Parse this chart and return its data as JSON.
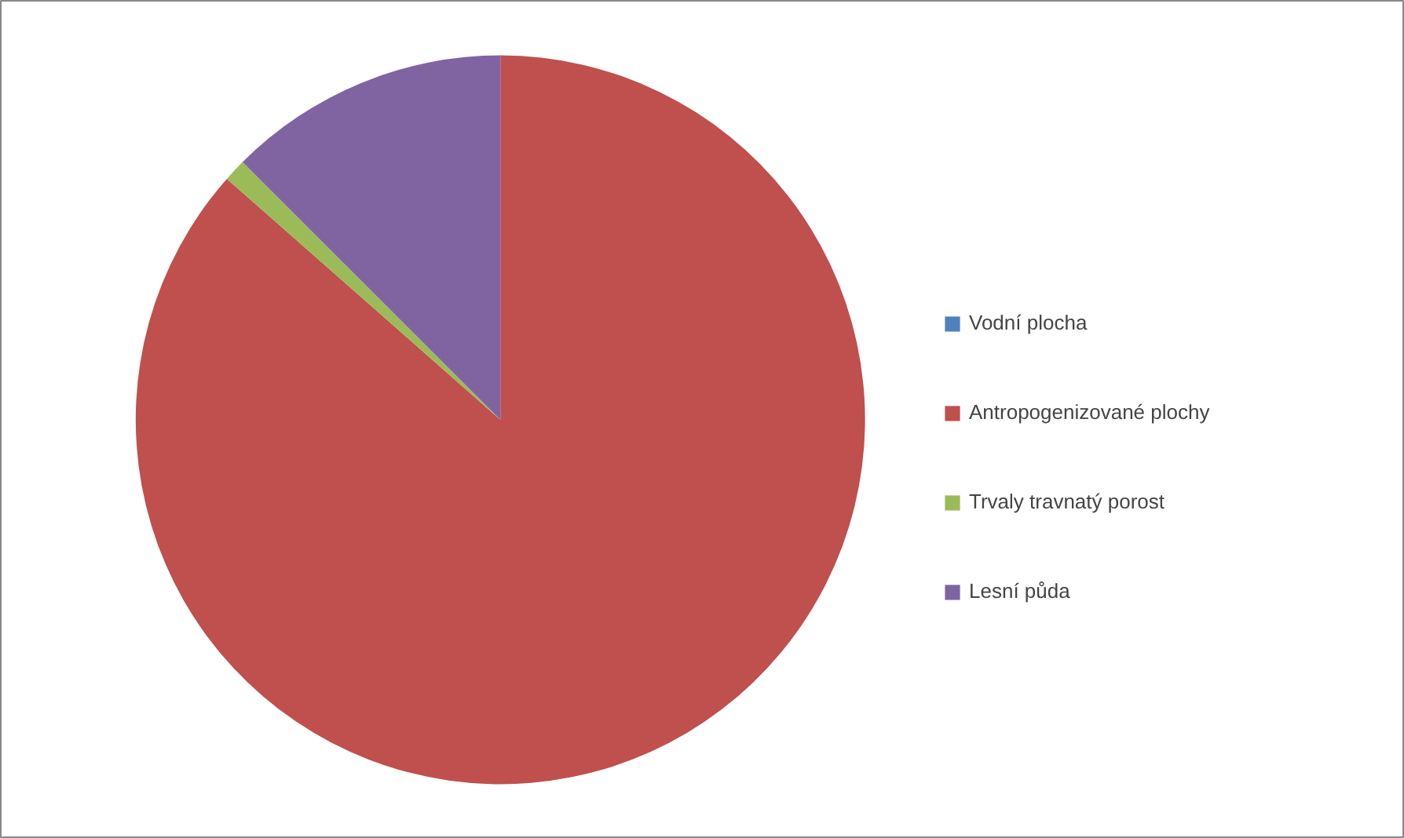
{
  "chart_data": {
    "type": "pie",
    "categories": [
      "Vodní plocha",
      "Antropogenizované plochy",
      "Trvaly travnatý porost",
      "Lesní půda"
    ],
    "values": [
      0,
      86.5,
      1,
      12.5
    ],
    "colors": [
      "#4f81bd",
      "#c0504d",
      "#9bbb59",
      "#8064a2"
    ],
    "legend": "right"
  }
}
